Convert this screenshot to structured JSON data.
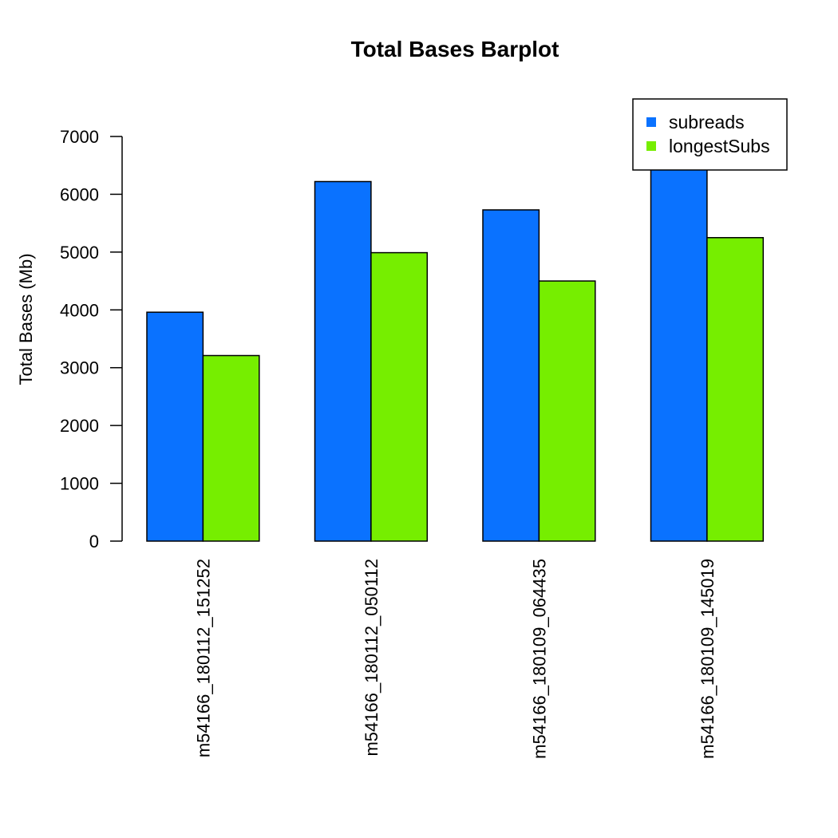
{
  "chart_data": {
    "type": "bar",
    "title": "Total Bases Barplot",
    "xlabel": "",
    "ylabel": "Total Bases (Mb)",
    "ylim": [
      0,
      7000
    ],
    "yticks": [
      0,
      1000,
      2000,
      3000,
      4000,
      5000,
      6000,
      7000
    ],
    "categories": [
      "m54166_180112_151252",
      "m54166_180112_050112",
      "m54166_180109_064435",
      "m54166_180109_145019"
    ],
    "series": [
      {
        "name": "subreads",
        "color": "#0a72ff",
        "values": [
          3960,
          6220,
          5730,
          6650
        ]
      },
      {
        "name": "longestSubs",
        "color": "#76ee00",
        "values": [
          3210,
          4990,
          4500,
          5250
        ]
      }
    ],
    "legend_position": "top-right",
    "grid": false
  }
}
